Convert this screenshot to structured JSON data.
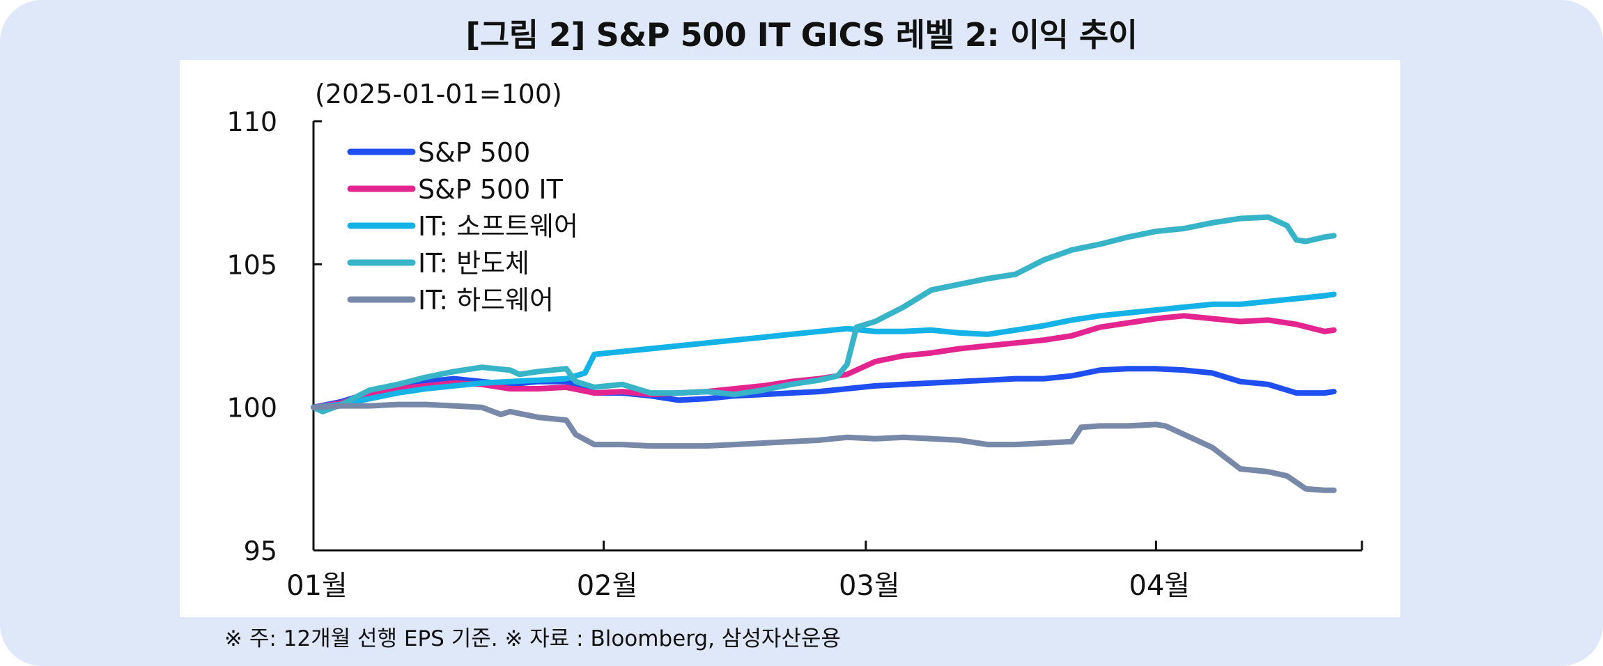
{
  "title": "[그림 2] S&P 500 IT GICS 레벨 2: 이익 추이",
  "footnote": "※ 주: 12개월 선행 EPS 기준. ※ 자료 : Bloomberg, 삼성자산운용",
  "chart_data": {
    "type": "line",
    "title": "[그림 2] S&P 500 IT GICS 레벨 2: 이익 추이",
    "unit_label": "(2025-01-01=100)",
    "ylim": [
      95,
      110
    ],
    "yticks": [
      95,
      100,
      105,
      110
    ],
    "xlim": [
      0,
      112
    ],
    "xticks": [
      {
        "x": 0,
        "label": "01월"
      },
      {
        "x": 31,
        "label": "02월"
      },
      {
        "x": 59,
        "label": "03월"
      },
      {
        "x": 90,
        "label": "04월"
      }
    ],
    "x_note": "x = days since 2025-01-01",
    "legend_position": "top-left",
    "series": [
      {
        "name": "S&P 500",
        "color": "#1f4ff0",
        "x": [
          0,
          3,
          6,
          9,
          12,
          15,
          18,
          21,
          24,
          27,
          30,
          33,
          36,
          39,
          42,
          45,
          48,
          51,
          54,
          57,
          60,
          63,
          66,
          69,
          72,
          75,
          78,
          81,
          84,
          87,
          90,
          93,
          96,
          99,
          102,
          105,
          108,
          109
        ],
        "y": [
          100,
          100.2,
          100.5,
          100.7,
          100.9,
          101,
          100.9,
          100.8,
          100.9,
          100.9,
          100.5,
          100.5,
          100.4,
          100.25,
          100.3,
          100.4,
          100.45,
          100.5,
          100.55,
          100.65,
          100.75,
          100.8,
          100.85,
          100.9,
          100.95,
          101,
          101,
          101.1,
          101.3,
          101.35,
          101.35,
          101.3,
          101.2,
          100.9,
          100.8,
          100.5,
          100.5,
          100.55
        ]
      },
      {
        "name": "S&P 500 IT",
        "color": "#e5258f",
        "x": [
          0,
          3,
          6,
          9,
          12,
          15,
          18,
          21,
          24,
          27,
          30,
          33,
          36,
          39,
          42,
          45,
          48,
          51,
          54,
          57,
          60,
          63,
          66,
          69,
          72,
          75,
          78,
          81,
          84,
          87,
          90,
          93,
          96,
          99,
          102,
          105,
          108,
          109
        ],
        "y": [
          100,
          100.15,
          100.5,
          100.65,
          100.75,
          100.85,
          100.8,
          100.65,
          100.65,
          100.7,
          100.5,
          100.55,
          100.45,
          100.5,
          100.55,
          100.65,
          100.75,
          100.9,
          101.0,
          101.15,
          101.6,
          101.8,
          101.9,
          102.05,
          102.15,
          102.25,
          102.35,
          102.5,
          102.8,
          102.95,
          103.1,
          103.2,
          103.1,
          103.0,
          103.05,
          102.9,
          102.65,
          102.7
        ]
      },
      {
        "name": "IT: 소프트웨어",
        "color": "#14b2e6",
        "x": [
          0,
          3,
          6,
          9,
          12,
          15,
          18,
          21,
          24,
          27,
          29,
          30,
          33,
          36,
          39,
          42,
          45,
          48,
          51,
          54,
          57,
          60,
          63,
          66,
          69,
          72,
          75,
          78,
          81,
          84,
          87,
          90,
          93,
          96,
          99,
          102,
          105,
          108,
          109
        ],
        "y": [
          100,
          100.1,
          100.3,
          100.5,
          100.65,
          100.75,
          100.85,
          100.9,
          100.95,
          101.0,
          101.2,
          101.85,
          101.95,
          102.05,
          102.15,
          102.25,
          102.35,
          102.45,
          102.55,
          102.65,
          102.75,
          102.65,
          102.65,
          102.7,
          102.6,
          102.55,
          102.7,
          102.85,
          103.05,
          103.2,
          103.3,
          103.4,
          103.5,
          103.6,
          103.6,
          103.7,
          103.8,
          103.9,
          103.95
        ]
      },
      {
        "name": "IT: 반도체",
        "color": "#38b4c8",
        "x": [
          0,
          1,
          3,
          6,
          9,
          12,
          15,
          18,
          21,
          22,
          24,
          27,
          28,
          30,
          33,
          36,
          39,
          42,
          45,
          48,
          51,
          54,
          56,
          57,
          58,
          60,
          63,
          66,
          69,
          72,
          75,
          78,
          81,
          84,
          87,
          90,
          93,
          96,
          99,
          102,
          104,
          105,
          106,
          108,
          109
        ],
        "y": [
          100,
          99.85,
          100.1,
          100.6,
          100.8,
          101.05,
          101.25,
          101.4,
          101.3,
          101.15,
          101.25,
          101.35,
          100.9,
          100.7,
          100.8,
          100.5,
          100.5,
          100.55,
          100.45,
          100.6,
          100.8,
          100.95,
          101.1,
          101.5,
          102.8,
          103.0,
          103.5,
          104.1,
          104.3,
          104.5,
          104.65,
          105.15,
          105.5,
          105.7,
          105.95,
          106.15,
          106.25,
          106.45,
          106.6,
          106.65,
          106.35,
          105.85,
          105.8,
          105.95,
          106.0
        ]
      },
      {
        "name": "IT: 하드웨어",
        "color": "#7888a8",
        "x": [
          0,
          3,
          6,
          9,
          12,
          15,
          18,
          20,
          21,
          24,
          27,
          28,
          30,
          33,
          36,
          39,
          42,
          45,
          48,
          51,
          54,
          57,
          60,
          63,
          66,
          69,
          72,
          75,
          78,
          81,
          82,
          84,
          87,
          90,
          91,
          93,
          96,
          99,
          102,
          104,
          106,
          108,
          109
        ],
        "y": [
          100,
          100.05,
          100.05,
          100.1,
          100.1,
          100.05,
          100.0,
          99.75,
          99.85,
          99.65,
          99.55,
          99.05,
          98.7,
          98.7,
          98.65,
          98.65,
          98.65,
          98.7,
          98.75,
          98.8,
          98.85,
          98.95,
          98.9,
          98.95,
          98.9,
          98.85,
          98.7,
          98.7,
          98.75,
          98.8,
          99.3,
          99.35,
          99.35,
          99.4,
          99.35,
          99.05,
          98.6,
          97.85,
          97.75,
          97.6,
          97.15,
          97.1,
          97.1
        ]
      }
    ]
  }
}
